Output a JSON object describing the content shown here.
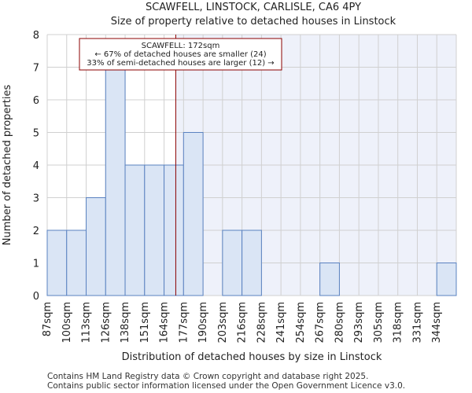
{
  "chart_data": {
    "type": "bar",
    "title": "SCAWFELL, LINSTOCK, CARLISLE, CA6 4PY",
    "subtitle": "Size of property relative to detached houses in Linstock",
    "xlabel": "Distribution of detached houses by size in Linstock",
    "ylabel": "Number of detached properties",
    "categories": [
      "87sqm",
      "100sqm",
      "113sqm",
      "126sqm",
      "138sqm",
      "151sqm",
      "164sqm",
      "177sqm",
      "190sqm",
      "203sqm",
      "216sqm",
      "228sqm",
      "241sqm",
      "254sqm",
      "267sqm",
      "280sqm",
      "293sqm",
      "305sqm",
      "318sqm",
      "331sqm",
      "344sqm"
    ],
    "values": [
      2,
      2,
      3,
      7,
      4,
      4,
      4,
      5,
      0,
      2,
      2,
      0,
      0,
      0,
      1,
      0,
      0,
      0,
      0,
      0,
      1
    ],
    "ylim": [
      0,
      8
    ],
    "yticks": [
      0,
      1,
      2,
      3,
      4,
      5,
      6,
      7,
      8
    ],
    "grid": true,
    "marker": {
      "value_sqm": 172,
      "position_bins": 6.6,
      "color": "#8b0000",
      "lines": [
        "SCAWFELL: 172sqm",
        "← 67% of detached houses are smaller (24)",
        "33% of semi-detached houses are larger (12) →"
      ]
    },
    "colors": {
      "bar_fill": "#dae5f5",
      "bar_stroke": "#5a82c0",
      "plot_bg_left": "#ffffff",
      "plot_bg_right": "#eef1fa",
      "grid": "#d0d0d0"
    }
  },
  "footer": {
    "line1": "Contains HM Land Registry data © Crown copyright and database right 2025.",
    "line2": "Contains public sector information licensed under the Open Government Licence v3.0."
  }
}
